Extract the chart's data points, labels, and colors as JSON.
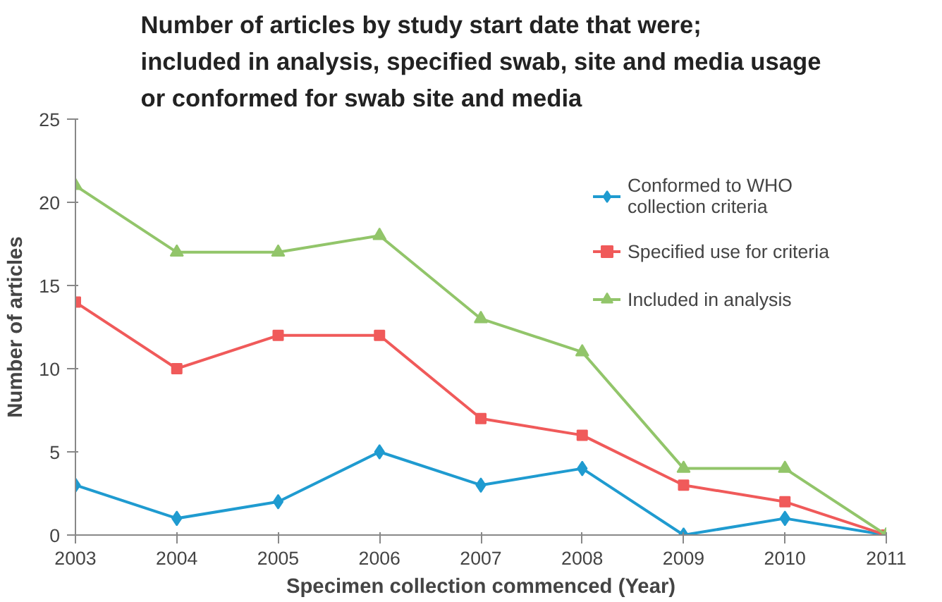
{
  "chart_data": {
    "type": "line",
    "title": "Number of articles by study start date that were;\nincluded in analysis, specified swab, site and media usage\nor conformed for swab site and media",
    "xlabel": "Specimen collection commenced (Year)",
    "ylabel": "Number of articles",
    "x": [
      2003,
      2004,
      2005,
      2006,
      2007,
      2008,
      2009,
      2010,
      2011
    ],
    "xlim": [
      2003,
      2011
    ],
    "xticks": [
      2003,
      2004,
      2005,
      2006,
      2007,
      2008,
      2009,
      2010,
      2011
    ],
    "ylim": [
      0,
      25
    ],
    "yticks": [
      0,
      5,
      10,
      15,
      20,
      25
    ],
    "grid": false,
    "legend": "top right",
    "line_style": "solid",
    "series": [
      {
        "name": "Conformed to WHO\ncollection criteria",
        "color": "#1f9bd0",
        "marker": "diamond",
        "values": [
          3,
          1,
          2,
          5,
          3,
          4,
          0,
          1,
          0
        ]
      },
      {
        "name": "Specified use for criteria",
        "color": "#f05a5a",
        "marker": "square",
        "values": [
          14,
          10,
          12,
          12,
          7,
          6,
          3,
          2,
          0
        ]
      },
      {
        "name": "Included in analysis",
        "color": "#92c56a",
        "marker": "triangle",
        "values": [
          21,
          17,
          17,
          18,
          13,
          11,
          4,
          4,
          0
        ]
      }
    ]
  }
}
